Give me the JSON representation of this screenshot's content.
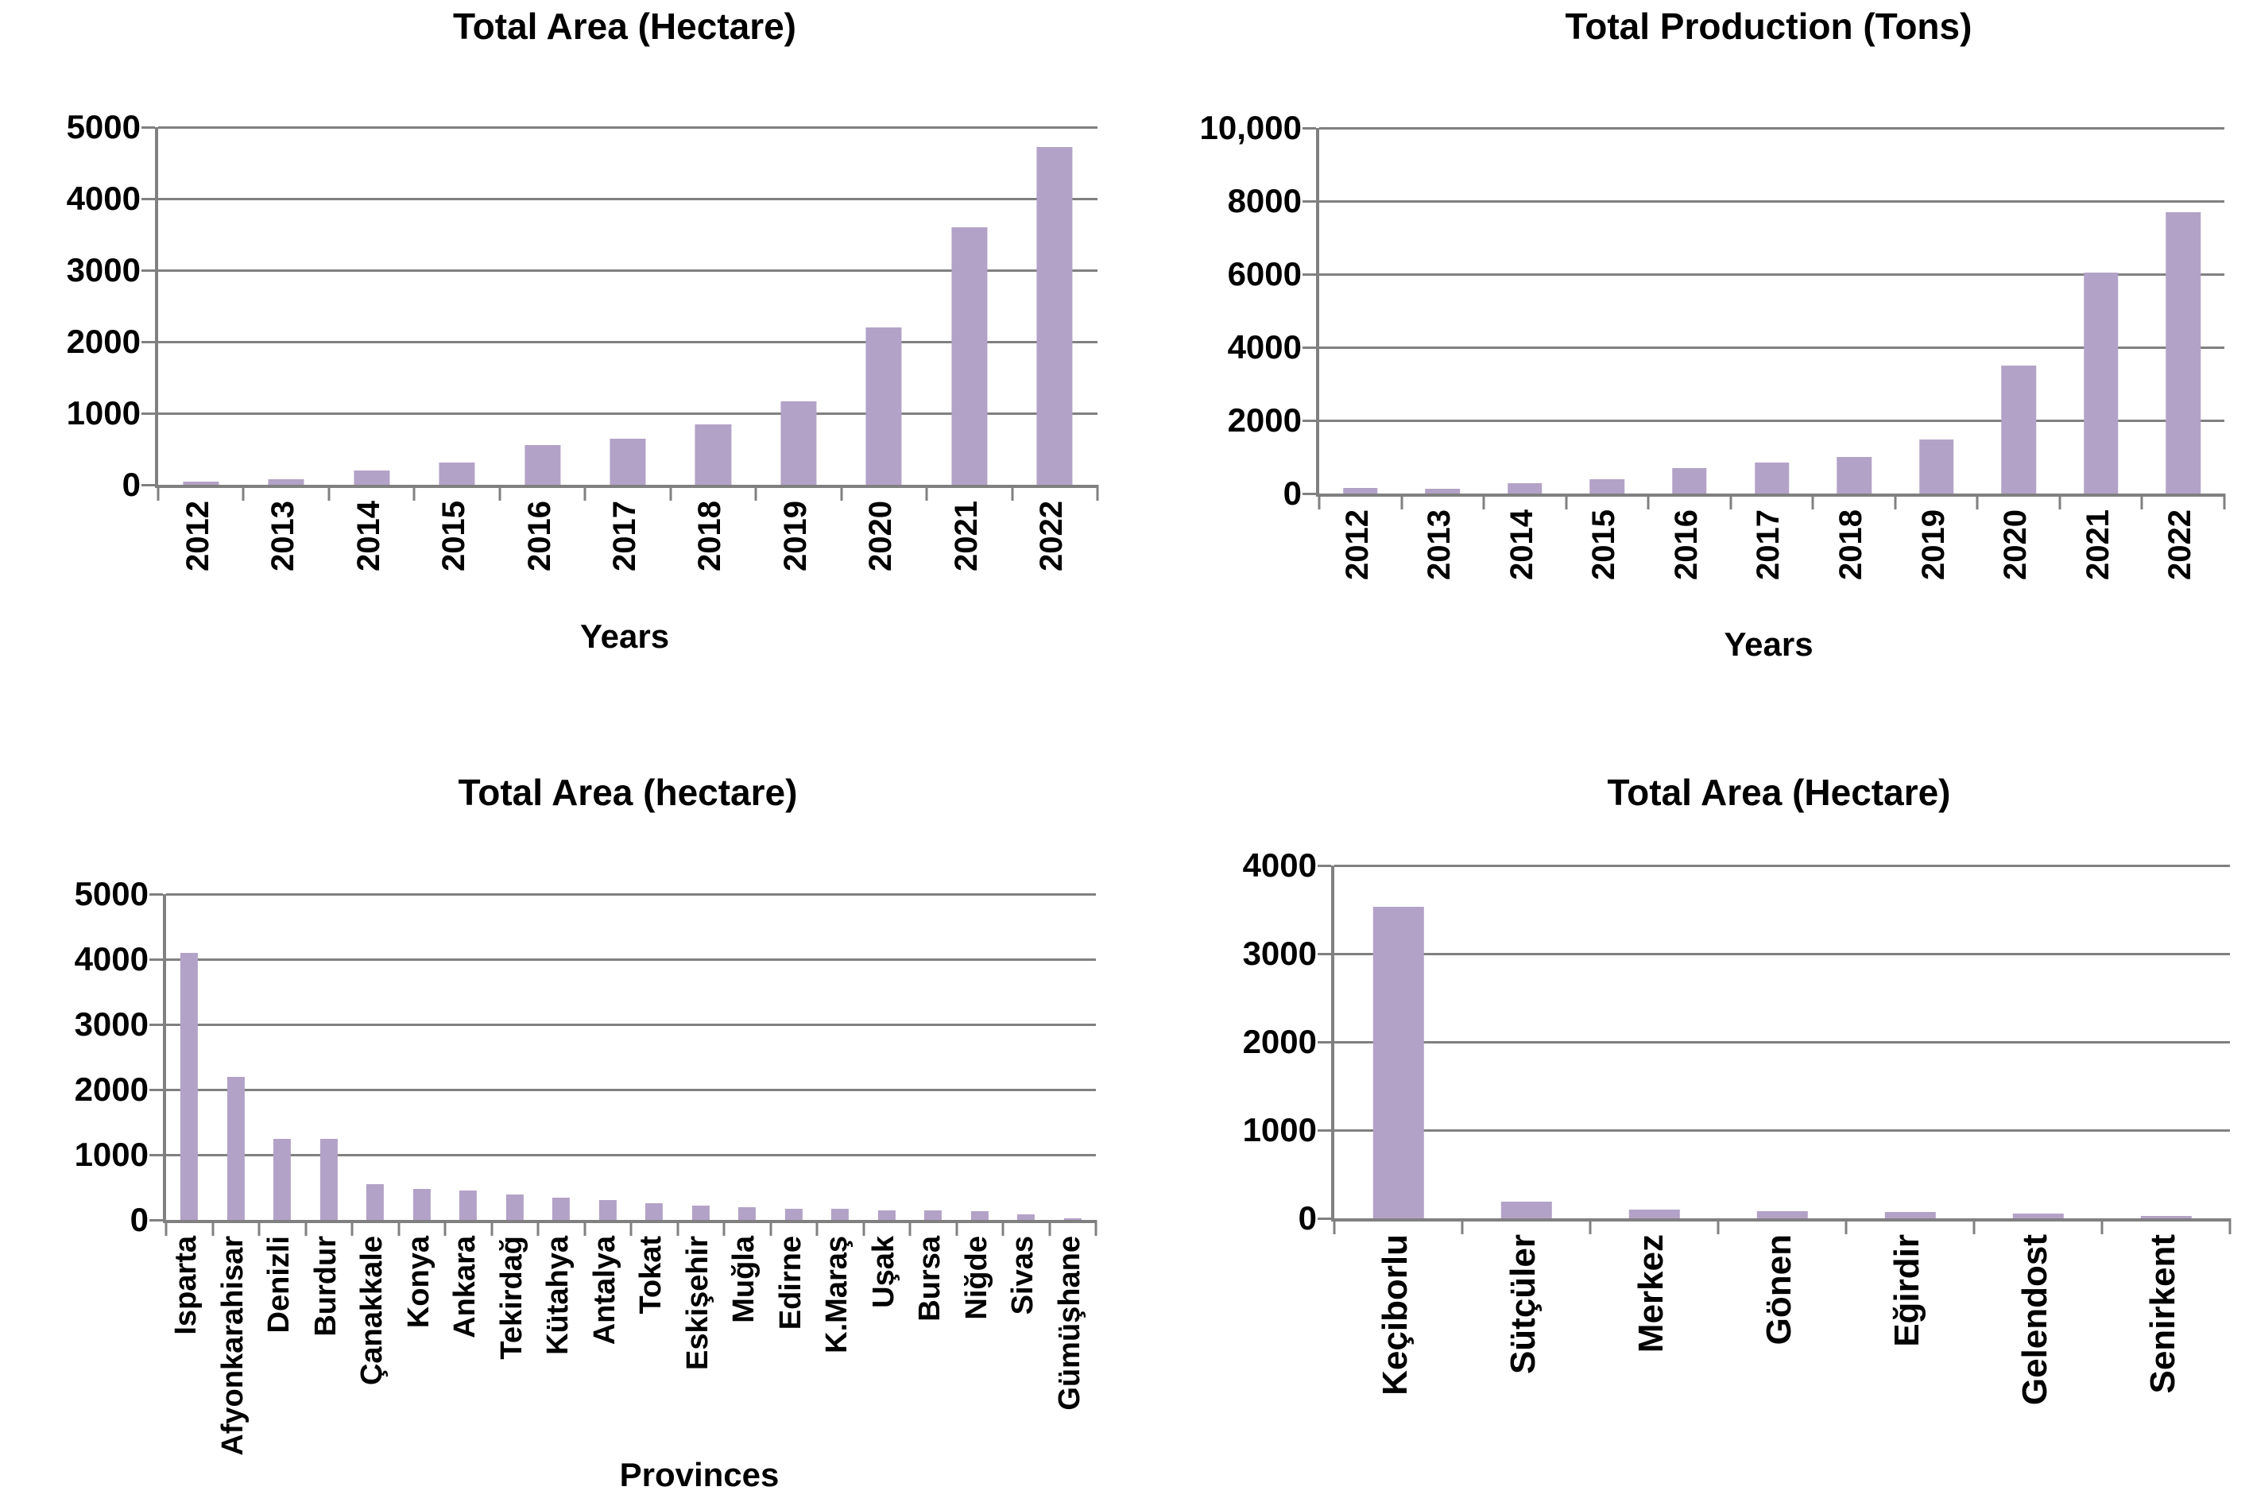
{
  "page": {
    "background": "#ffffff"
  },
  "colors": {
    "bar": "#b3a2c7",
    "grid": "#808080",
    "axis": "#808080",
    "text": "#000000"
  },
  "chart_data": [
    {
      "type": "bar",
      "title": "Total Area (Hectare)",
      "xlabel": "Years",
      "ylabel": "",
      "categories": [
        "2012",
        "2013",
        "2014",
        "2015",
        "2016",
        "2017",
        "2018",
        "2019",
        "2020",
        "2021",
        "2022"
      ],
      "values": [
        40,
        80,
        200,
        310,
        560,
        650,
        840,
        1170,
        2200,
        3600,
        4720
      ],
      "ylim": [
        0,
        5000
      ],
      "yticks": [
        0,
        1000,
        2000,
        3000,
        4000,
        5000
      ],
      "ytick_labels": [
        "0",
        "1000",
        "2000",
        "3000",
        "4000",
        "5000"
      ],
      "grid": true,
      "legend": "none"
    },
    {
      "type": "bar",
      "title": "Total Production (Tons)",
      "xlabel": "Years",
      "ylabel": "",
      "categories": [
        "2012",
        "2013",
        "2014",
        "2015",
        "2016",
        "2017",
        "2018",
        "2019",
        "2020",
        "2021",
        "2022"
      ],
      "values": [
        150,
        130,
        290,
        400,
        700,
        850,
        1000,
        1480,
        3500,
        6050,
        7700
      ],
      "ylim": [
        0,
        10000
      ],
      "yticks": [
        0,
        2000,
        4000,
        6000,
        8000,
        10000
      ],
      "ytick_labels": [
        "0",
        "2000",
        "4000",
        "6000",
        "8000",
        "10,000"
      ],
      "grid": true,
      "legend": "none"
    },
    {
      "type": "bar",
      "title": "Total Area (hectare)",
      "xlabel": "Provinces",
      "ylabel": "",
      "categories": [
        "Isparta",
        "Afyonkarahisar",
        "Denizli",
        "Burdur",
        "Çanakkale",
        "Konya",
        "Ankara",
        "Tekirdağ",
        "Kütahya",
        "Antalya",
        "Tokat",
        "Eskişehir",
        "Muğla",
        "Edirne",
        "K.Maraş",
        "Uşak",
        "Bursa",
        "Niğde",
        "Sivas",
        "Gümüşhane"
      ],
      "values": [
        4100,
        2200,
        1250,
        1250,
        550,
        470,
        450,
        390,
        340,
        305,
        255,
        225,
        200,
        175,
        165,
        150,
        145,
        135,
        80,
        30
      ],
      "ylim": [
        0,
        5000
      ],
      "yticks": [
        0,
        1000,
        2000,
        3000,
        4000,
        5000
      ],
      "ytick_labels": [
        "0",
        "1000",
        "2000",
        "3000",
        "4000",
        "5000"
      ],
      "grid": true,
      "legend": "none"
    },
    {
      "type": "bar",
      "title": "Total Area (Hectare)",
      "xlabel": "",
      "ylabel": "",
      "categories": [
        "Keçiborlu",
        "Sütçüler",
        "Merkez",
        "Gönen",
        "Eğirdir",
        "Gelendost",
        "Senirkent"
      ],
      "values": [
        3530,
        190,
        100,
        80,
        75,
        55,
        30
      ],
      "ylim": [
        0,
        4000
      ],
      "yticks": [
        0,
        1000,
        2000,
        3000,
        4000
      ],
      "ytick_labels": [
        "0",
        "1000",
        "2000",
        "3000",
        "4000"
      ],
      "grid": true,
      "legend": "none"
    }
  ]
}
